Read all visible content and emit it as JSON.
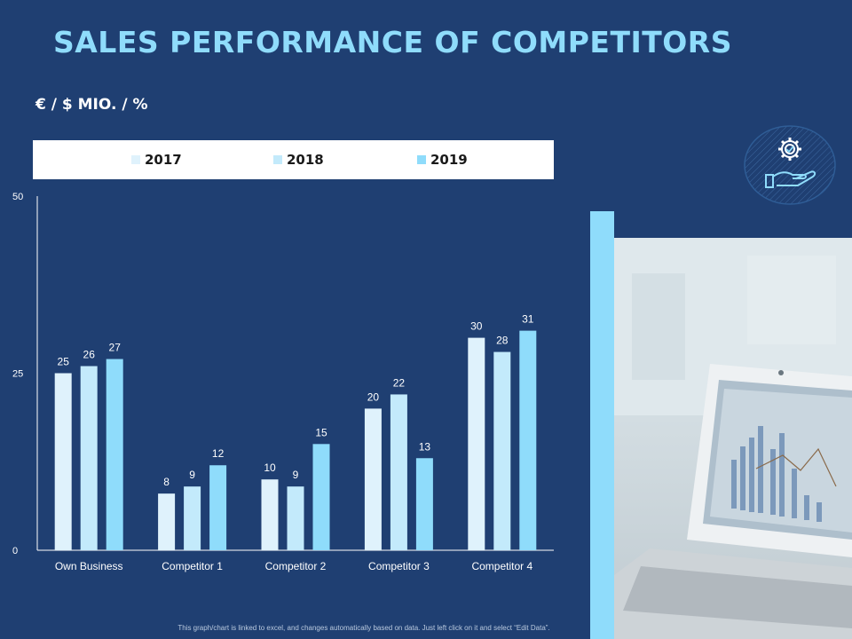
{
  "title": "SALES PERFORMANCE OF COMPETITORS",
  "units": "€ / $ MIO. / %",
  "footnote": "This graph/chart is linked to excel, and changes automatically based on data. Just left click on it and select “Edit Data”.",
  "chart_data": {
    "type": "bar",
    "categories": [
      "Own Business",
      "Competitor 1",
      "Competitor 2",
      "Competitor 3",
      "Competitor 4"
    ],
    "series": [
      {
        "name": "2017",
        "values": [
          25,
          8,
          10,
          20,
          30
        ],
        "color": "#dff2fc"
      },
      {
        "name": "2018",
        "values": [
          26,
          9,
          9,
          22,
          28
        ],
        "color": "#c3eafb"
      },
      {
        "name": "2019",
        "values": [
          27,
          12,
          15,
          13,
          31
        ],
        "color": "#8fdcfb"
      }
    ],
    "ylim": [
      0,
      50
    ],
    "yticks": [
      0,
      25,
      50
    ],
    "legend_position": "top",
    "grid": false,
    "data_labels": true
  },
  "colors": {
    "background": "#1f3f72",
    "title": "#8fdcfb",
    "accent": "#8fdcfb"
  },
  "icons": [
    "gear-hand-icon"
  ]
}
